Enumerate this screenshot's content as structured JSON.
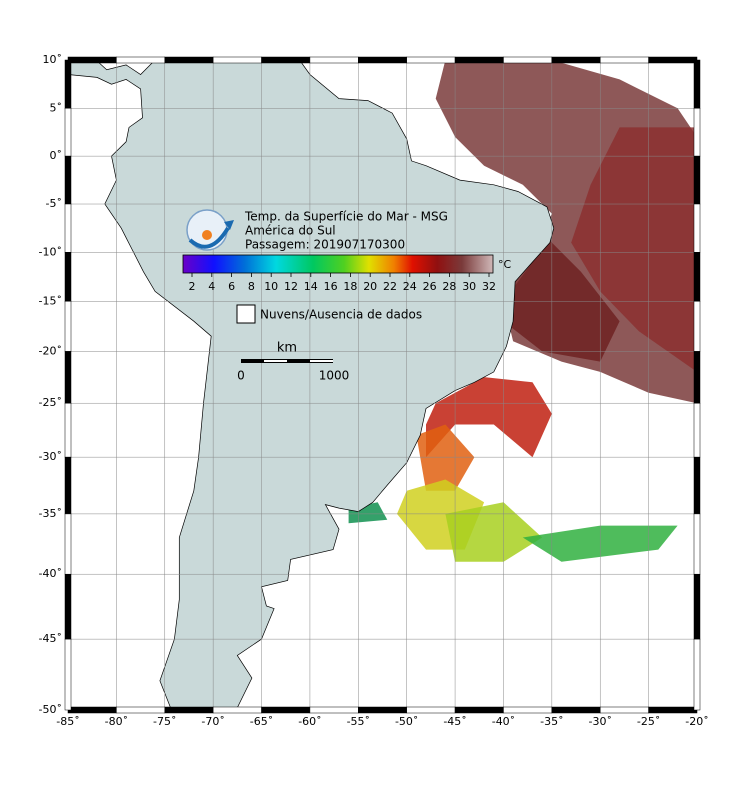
{
  "map": {
    "title": "Temp. da Superfície do Mar - MSG",
    "region": "América do Sul",
    "pass": "Passagem: 201907170300",
    "colorbar": {
      "unit": "°C",
      "ticks": [
        2,
        4,
        6,
        8,
        10,
        12,
        14,
        16,
        18,
        20,
        22,
        24,
        26,
        28,
        30,
        32
      ]
    },
    "legend": "Nuvens/Ausencia de dados",
    "scale": {
      "unit": "km",
      "labels": [
        0,
        1000
      ]
    },
    "xlim": [
      -85,
      -20
    ],
    "ylim": [
      -50,
      10
    ],
    "xticks": [
      {
        "value": -85,
        "label": "-85˚"
      },
      {
        "value": -80,
        "label": "-80˚"
      },
      {
        "value": -75,
        "label": "-75˚"
      },
      {
        "value": -70,
        "label": "-70˚"
      },
      {
        "value": -65,
        "label": "-65˚"
      },
      {
        "value": -60,
        "label": "-60˚"
      },
      {
        "value": -55,
        "label": "-55˚"
      },
      {
        "value": -50,
        "label": "-50˚"
      },
      {
        "value": -45,
        "label": "-45˚"
      },
      {
        "value": -40,
        "label": "-40˚"
      },
      {
        "value": -35,
        "label": "-35˚"
      },
      {
        "value": -30,
        "label": "-30˚"
      },
      {
        "value": -25,
        "label": "-25˚"
      },
      {
        "value": -20,
        "label": "-20˚"
      }
    ],
    "yticks": [
      {
        "value": 10,
        "label": "10˚"
      },
      {
        "value": 5,
        "label": "5˚"
      },
      {
        "value": 0,
        "label": "0˚"
      },
      {
        "value": -5,
        "label": "-5˚"
      },
      {
        "value": -10,
        "label": "-10˚"
      },
      {
        "value": -15,
        "label": "-15˚"
      },
      {
        "value": -20,
        "label": "-20˚"
      },
      {
        "value": -25,
        "label": "-25˚"
      },
      {
        "value": -30,
        "label": "-30˚"
      },
      {
        "value": -35,
        "label": "-35˚"
      },
      {
        "value": -40,
        "label": "-40˚"
      },
      {
        "value": -45,
        "label": "-45˚"
      },
      {
        "value": -50,
        "label": "-50˚"
      }
    ]
  }
}
